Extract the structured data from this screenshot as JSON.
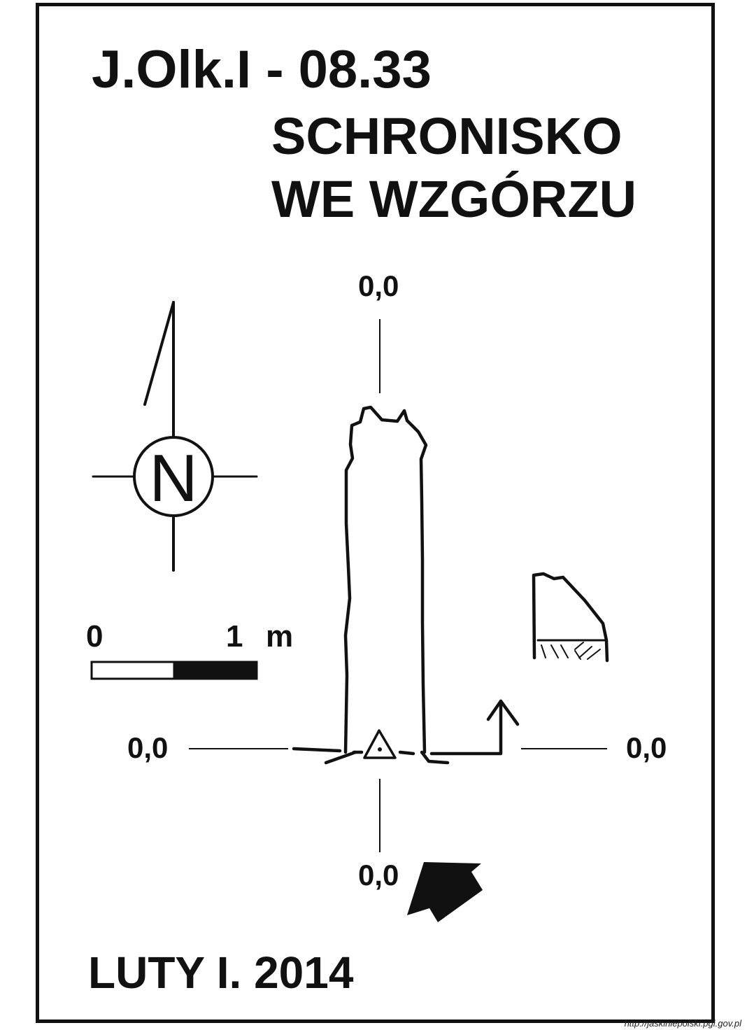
{
  "header": {
    "code": "J.Olk.I - 08.33",
    "name_line1": "SCHRONISKO",
    "name_line2": "WE WZGÓRZU"
  },
  "levels": {
    "top": "0,0",
    "left": "0,0",
    "right": "0,0",
    "bottom": "0,0"
  },
  "north": {
    "letter": "N",
    "icon": "north-arrow-icon"
  },
  "scale": {
    "start": "0",
    "end": "1",
    "unit": "m"
  },
  "footer": {
    "author_date": "LUTY I. 2014"
  },
  "source": "http://jaskiniepolski.pgi.gov.pl",
  "colors": {
    "ink": "#111111",
    "paper": "#ffffff"
  }
}
